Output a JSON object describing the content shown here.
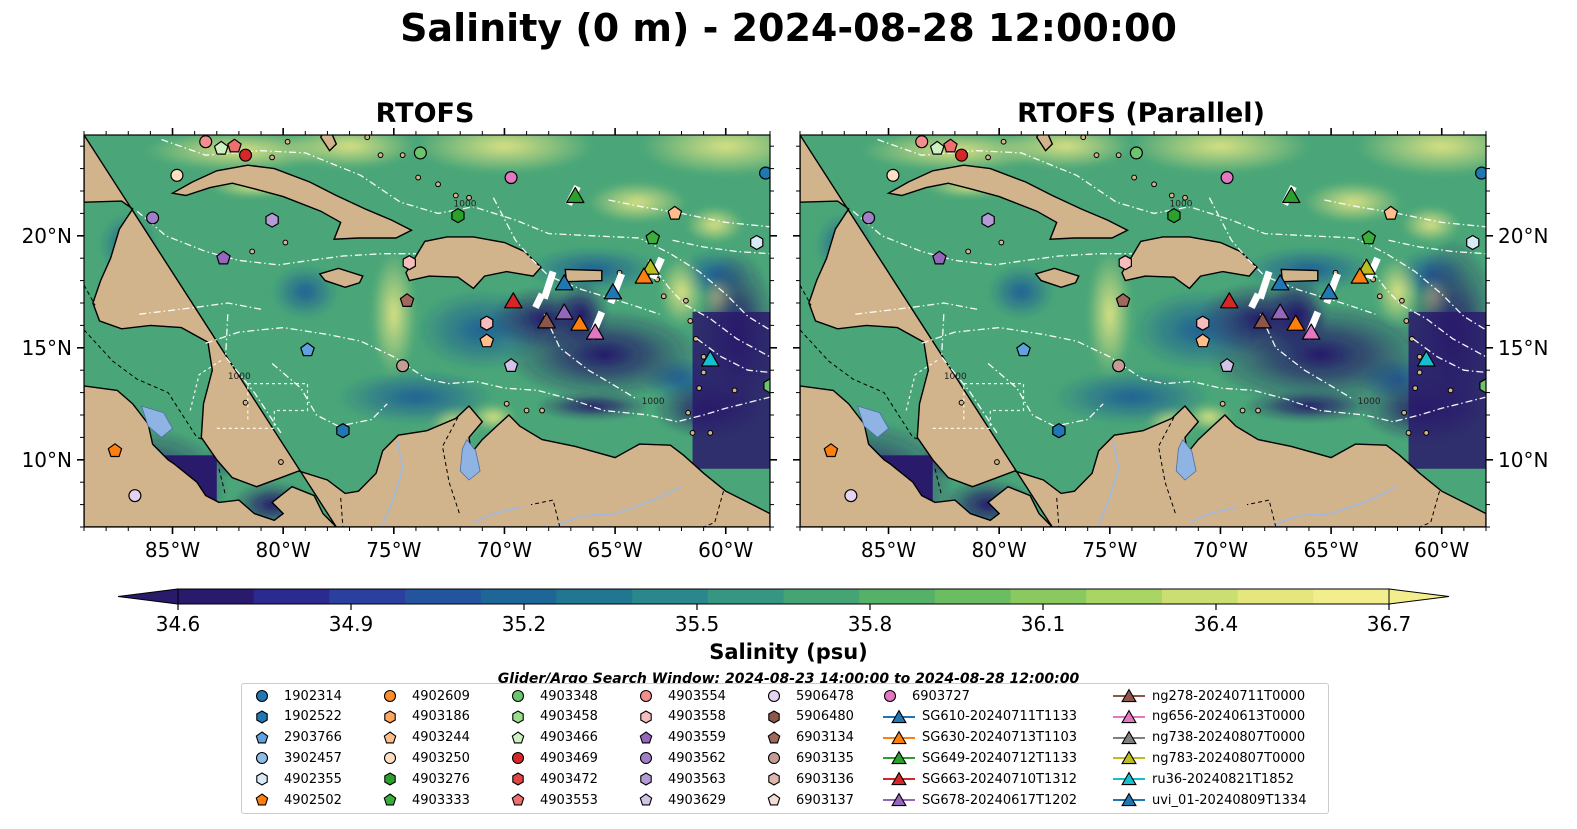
{
  "title": "Salinity (0 m) - 2024-08-28 12:00:00",
  "panels": [
    {
      "title": "RTOFS"
    },
    {
      "title": "RTOFS (Parallel)"
    }
  ],
  "map": {
    "lon_range": [
      -89,
      -58
    ],
    "lat_range": [
      7,
      24.5
    ],
    "lon_ticks": [
      -85,
      -80,
      -75,
      -70,
      -65,
      -60
    ],
    "lon_tick_labels": [
      "85°W",
      "80°W",
      "75°W",
      "70°W",
      "65°W",
      "60°W"
    ],
    "lat_ticks": [
      10,
      15,
      20
    ],
    "lat_tick_labels": [
      "10°N",
      "15°N",
      "20°N"
    ],
    "contour_label": "1000",
    "colors": {
      "land": "#d2b48c",
      "lake": "#8fb3e3",
      "low": "#2a1a6b",
      "high": "#f2ee8e"
    }
  },
  "colorbar": {
    "label": "Salinity (psu)",
    "min": 34.6,
    "max": 36.7,
    "ticks": [
      34.6,
      34.9,
      35.2,
      35.5,
      35.8,
      36.1,
      36.4,
      36.7
    ],
    "tick_labels": [
      "34.6",
      "34.9",
      "35.2",
      "35.5",
      "35.8",
      "36.1",
      "36.4",
      "36.7"
    ],
    "colors": [
      "#2a1a6b",
      "#2b2a8f",
      "#2a3f9e",
      "#24549e",
      "#1f6698",
      "#217792",
      "#2a878b",
      "#369681",
      "#44a474",
      "#55b167",
      "#6cbd61",
      "#8ac860",
      "#a9d565",
      "#cade72",
      "#e6e67f",
      "#f2ee8e"
    ]
  },
  "search_window": "Glider/Argo Search Window: 2024-08-23 14:00:00 to 2024-08-28 12:00:00",
  "legend": [
    {
      "label": "1902314",
      "color": "#1f77b4",
      "marker": "circle"
    },
    {
      "label": "1902522",
      "color": "#1f77b4",
      "marker": "hexagon"
    },
    {
      "label": "2903766",
      "color": "#5fa2dd",
      "marker": "pentagon"
    },
    {
      "label": "3902457",
      "color": "#8bbde6",
      "marker": "circle"
    },
    {
      "label": "4902355",
      "color": "#d9eaf7",
      "marker": "hexagon"
    },
    {
      "label": "4902502",
      "color": "#ff7f0e",
      "marker": "pentagon"
    },
    {
      "label": "4902609",
      "color": "#ff8c28",
      "marker": "circle"
    },
    {
      "label": "4903186",
      "color": "#ffa55c",
      "marker": "hexagon"
    },
    {
      "label": "4903244",
      "color": "#ffbe8a",
      "marker": "pentagon"
    },
    {
      "label": "4903250",
      "color": "#ffe0c2",
      "marker": "circle"
    },
    {
      "label": "4903276",
      "color": "#2ca02c",
      "marker": "hexagon"
    },
    {
      "label": "4903333",
      "color": "#3aae3a",
      "marker": "pentagon"
    },
    {
      "label": "4903348",
      "color": "#6cc46c",
      "marker": "circle"
    },
    {
      "label": "4903458",
      "color": "#98df8a",
      "marker": "hexagon"
    },
    {
      "label": "4903466",
      "color": "#cdf0c4",
      "marker": "pentagon"
    },
    {
      "label": "4903469",
      "color": "#d62728",
      "marker": "circle"
    },
    {
      "label": "4903472",
      "color": "#e04546",
      "marker": "hexagon"
    },
    {
      "label": "4903553",
      "color": "#ee6f70",
      "marker": "pentagon"
    },
    {
      "label": "4903554",
      "color": "#f28e8e",
      "marker": "circle"
    },
    {
      "label": "4903558",
      "color": "#f7bcbc",
      "marker": "hexagon"
    },
    {
      "label": "4903559",
      "color": "#9467bd",
      "marker": "pentagon"
    },
    {
      "label": "4903562",
      "color": "#a07fc8",
      "marker": "circle"
    },
    {
      "label": "4903563",
      "color": "#b59bd6",
      "marker": "hexagon"
    },
    {
      "label": "4903629",
      "color": "#d4c3e8",
      "marker": "pentagon"
    },
    {
      "label": "5906478",
      "color": "#e4d3f3",
      "marker": "circle"
    },
    {
      "label": "5906480",
      "color": "#8c564b",
      "marker": "hexagon"
    },
    {
      "label": "6903134",
      "color": "#a0685c",
      "marker": "pentagon"
    },
    {
      "label": "6903135",
      "color": "#c49c94",
      "marker": "circle"
    },
    {
      "label": "6903136",
      "color": "#ddb8ad",
      "marker": "hexagon"
    },
    {
      "label": "6903137",
      "color": "#f3ddd6",
      "marker": "pentagon"
    },
    {
      "label": "6903727",
      "color": "#e377c2",
      "marker": "circle"
    },
    {
      "label": "SG610-20240711T1133",
      "color": "#1f77b4",
      "marker": "triangle"
    },
    {
      "label": "SG630-20240713T1103",
      "color": "#ff7f0e",
      "marker": "triangle"
    },
    {
      "label": "SG649-20240712T1133",
      "color": "#2ca02c",
      "marker": "triangle"
    },
    {
      "label": "SG663-20240710T1312",
      "color": "#d62728",
      "marker": "triangle"
    },
    {
      "label": "SG678-20240617T1202",
      "color": "#9467bd",
      "marker": "triangle"
    },
    {
      "label": "ng278-20240711T0000",
      "color": "#8c564b",
      "marker": "triangle"
    },
    {
      "label": "ng656-20240613T0000",
      "color": "#e377c2",
      "marker": "triangle"
    },
    {
      "label": "ng738-20240807T0000",
      "color": "#7f7f7f",
      "marker": "triangle"
    },
    {
      "label": "ng783-20240807T0000",
      "color": "#bcbd22",
      "marker": "triangle"
    },
    {
      "label": "ru36-20240821T1852",
      "color": "#17becf",
      "marker": "triangle"
    },
    {
      "label": "uvi_01-20240809T1334",
      "color": "#1f77b4",
      "marker": "triangle"
    }
  ],
  "argo_positions": [
    {
      "lon": -83.5,
      "lat": 24.2,
      "color": "#f28e8e",
      "marker": "circle"
    },
    {
      "lon": -82.8,
      "lat": 23.9,
      "color": "#cdf0c4",
      "marker": "pentagon"
    },
    {
      "lon": -82.2,
      "lat": 24.0,
      "color": "#ee6f70",
      "marker": "pentagon"
    },
    {
      "lon": -81.7,
      "lat": 23.6,
      "color": "#d62728",
      "marker": "circle"
    },
    {
      "lon": -84.8,
      "lat": 22.7,
      "color": "#ffe0c2",
      "marker": "circle"
    },
    {
      "lon": -73.8,
      "lat": 23.7,
      "color": "#6cc46c",
      "marker": "circle"
    },
    {
      "lon": -69.7,
      "lat": 22.6,
      "color": "#e377c2",
      "marker": "circle"
    },
    {
      "lon": -58.2,
      "lat": 22.8,
      "color": "#1f77b4",
      "marker": "circle"
    },
    {
      "lon": -85.9,
      "lat": 20.8,
      "color": "#a07fc8",
      "marker": "circle"
    },
    {
      "lon": -80.5,
      "lat": 20.7,
      "color": "#b59bd6",
      "marker": "hexagon"
    },
    {
      "lon": -72.1,
      "lat": 20.9,
      "color": "#2ca02c",
      "marker": "hexagon"
    },
    {
      "lon": -62.3,
      "lat": 21.0,
      "color": "#ffbe8a",
      "marker": "pentagon"
    },
    {
      "lon": -58.6,
      "lat": 19.7,
      "color": "#d9eaf7",
      "marker": "hexagon"
    },
    {
      "lon": -63.3,
      "lat": 19.9,
      "color": "#3aae3a",
      "marker": "pentagon"
    },
    {
      "lon": -82.7,
      "lat": 19.0,
      "color": "#9467bd",
      "marker": "pentagon"
    },
    {
      "lon": -74.3,
      "lat": 18.8,
      "color": "#f7bcbc",
      "marker": "hexagon"
    },
    {
      "lon": -74.4,
      "lat": 17.1,
      "color": "#a0685c",
      "marker": "pentagon"
    },
    {
      "lon": -70.8,
      "lat": 16.1,
      "color": "#f7bcbc",
      "marker": "hexagon"
    },
    {
      "lon": -70.8,
      "lat": 15.3,
      "color": "#ffbe8a",
      "marker": "pentagon"
    },
    {
      "lon": -78.9,
      "lat": 14.9,
      "color": "#5fa2dd",
      "marker": "pentagon"
    },
    {
      "lon": -74.6,
      "lat": 14.2,
      "color": "#c49c94",
      "marker": "circle"
    },
    {
      "lon": -69.7,
      "lat": 14.2,
      "color": "#d4c3e8",
      "marker": "pentagon"
    },
    {
      "lon": -58.0,
      "lat": 13.3,
      "color": "#6cc46c",
      "marker": "hexagon"
    },
    {
      "lon": -77.3,
      "lat": 11.3,
      "color": "#1f77b4",
      "marker": "hexagon"
    },
    {
      "lon": -87.6,
      "lat": 10.4,
      "color": "#ff7f0e",
      "marker": "pentagon"
    },
    {
      "lon": -86.7,
      "lat": 8.4,
      "color": "#e4d3f3",
      "marker": "circle"
    }
  ],
  "glider_positions": [
    {
      "lon": -66.8,
      "lat": 21.8,
      "color": "#2ca02c"
    },
    {
      "lon": -63.4,
      "lat": 18.6,
      "color": "#bcbd22"
    },
    {
      "lon": -63.7,
      "lat": 18.2,
      "color": "#ff7f0e"
    },
    {
      "lon": -67.3,
      "lat": 17.9,
      "color": "#1f77b4"
    },
    {
      "lon": -65.1,
      "lat": 17.5,
      "color": "#1f77b4"
    },
    {
      "lon": -69.6,
      "lat": 17.1,
      "color": "#d62728"
    },
    {
      "lon": -67.3,
      "lat": 16.6,
      "color": "#9467bd"
    },
    {
      "lon": -68.1,
      "lat": 16.2,
      "color": "#8c564b"
    },
    {
      "lon": -66.6,
      "lat": 16.1,
      "color": "#ff7f0e"
    },
    {
      "lon": -65.9,
      "lat": 15.7,
      "color": "#e377c2"
    },
    {
      "lon": -60.7,
      "lat": 14.5,
      "color": "#17becf"
    }
  ]
}
